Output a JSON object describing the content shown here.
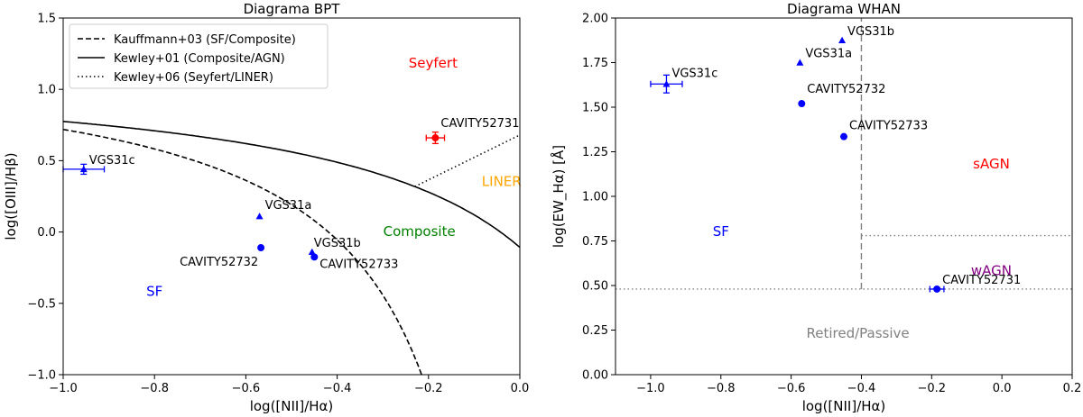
{
  "chart_data": [
    {
      "type": "scatter",
      "title": "Diagrama BPT",
      "xlabel": "log([NII]/Hα)",
      "ylabel": "log([OIII]/Hβ)",
      "xlim": [
        -1.0,
        0.0
      ],
      "ylim": [
        -1.0,
        1.5
      ],
      "xticks": [
        -1.0,
        -0.8,
        -0.6,
        -0.4,
        -0.2,
        0.0
      ],
      "xtick_labels": [
        "−1.0",
        "−0.8",
        "−0.6",
        "−0.4",
        "−0.2",
        "0.0"
      ],
      "yticks": [
        -1.0,
        -0.5,
        0.0,
        0.5,
        1.0,
        1.5
      ],
      "ytick_labels": [
        "−1.0",
        "−0.5",
        "0.0",
        "0.5",
        "1.0",
        "1.5"
      ],
      "legend": {
        "placement": "top-left",
        "entries": [
          {
            "label": "Kauffmann+03 (SF/Composite)",
            "style": "dashed"
          },
          {
            "label": "Kewley+01 (Composite/AGN)",
            "style": "solid"
          },
          {
            "label": "Kewley+06 (Seyfert/LINER)",
            "style": "dotted"
          }
        ]
      },
      "points": [
        {
          "name": "VGS31c",
          "x": -0.955,
          "y": 0.44,
          "marker": "triangle",
          "color": "#0000ff",
          "xerr": 0.045,
          "yerr": 0.035,
          "label_dx": 6,
          "label_dy": -6
        },
        {
          "name": "VGS31a",
          "x": -0.57,
          "y": 0.11,
          "marker": "triangle",
          "color": "#0000ff",
          "xerr": 0,
          "yerr": 0,
          "label_dx": 6,
          "label_dy": -8
        },
        {
          "name": "CAVITY52732",
          "x": -0.567,
          "y": -0.11,
          "marker": "circle",
          "color": "#0000ff",
          "xerr": 0,
          "yerr": 0,
          "label_dx": -90,
          "label_dy": 20
        },
        {
          "name": "VGS31b",
          "x": -0.455,
          "y": -0.14,
          "marker": "triangle",
          "color": "#0000ff",
          "xerr": 0,
          "yerr": 0,
          "label_dx": 2,
          "label_dy": -6
        },
        {
          "name": "CAVITY52733",
          "x": -0.45,
          "y": -0.175,
          "marker": "circle",
          "color": "#0000ff",
          "xerr": 0,
          "yerr": 0,
          "label_dx": 6,
          "label_dy": 12
        },
        {
          "name": "CAVITY52731",
          "x": -0.185,
          "y": 0.66,
          "marker": "circle",
          "color": "#ff0000",
          "xerr": 0.02,
          "yerr": 0.04,
          "label_dx": 6,
          "label_dy": -12
        }
      ],
      "annotations": [
        {
          "text": "Seyfert",
          "x": -0.19,
          "y": 1.18,
          "color": "#ff0000"
        },
        {
          "text": "LINER",
          "x": -0.04,
          "y": 0.35,
          "color": "#ffa500"
        },
        {
          "text": "Composite",
          "x": -0.22,
          "y": 0.0,
          "color": "#008000"
        },
        {
          "text": "SF",
          "x": -0.8,
          "y": -0.42,
          "color": "#0000ff"
        }
      ],
      "curves": {
        "kauffmann03": {
          "formula": "0.61/(x-0.05)+1.3",
          "x_from": -1.0,
          "x_to": -0.2
        },
        "kewley01": {
          "formula": "0.61/(x-0.47)+1.19",
          "x_from": -1.0,
          "x_to": 0.0
        },
        "kewley06": {
          "x_from": -0.23,
          "x_to": 0.0,
          "slope": 1.5,
          "intercept": 0.68
        }
      }
    },
    {
      "type": "scatter",
      "title": "Diagrama WHAN",
      "xlabel": "log([NII]/Hα)",
      "ylabel": "log(EW_Hα) [Å]",
      "xlim": [
        -1.1,
        0.2
      ],
      "ylim": [
        0.0,
        2.0
      ],
      "xticks": [
        -1.0,
        -0.8,
        -0.6,
        -0.4,
        -0.2,
        0.0,
        0.2
      ],
      "xtick_labels": [
        "−1.0",
        "−0.8",
        "−0.6",
        "−0.4",
        "−0.2",
        "0.0",
        "0.2"
      ],
      "yticks": [
        0.0,
        0.25,
        0.5,
        0.75,
        1.0,
        1.25,
        1.5,
        1.75,
        2.0
      ],
      "ytick_labels": [
        "0.00",
        "0.25",
        "0.50",
        "0.75",
        "1.00",
        "1.25",
        "1.50",
        "1.75",
        "2.00"
      ],
      "points": [
        {
          "name": "VGS31c",
          "x": -0.955,
          "y": 1.63,
          "marker": "triangle",
          "color": "#0000ff",
          "xerr": 0.045,
          "yerr": 0.05,
          "label_dx": 6,
          "label_dy": -8
        },
        {
          "name": "VGS31b",
          "x": -0.455,
          "y": 1.875,
          "marker": "triangle",
          "color": "#0000ff",
          "xerr": 0,
          "yerr": 0,
          "label_dx": 6,
          "label_dy": -6
        },
        {
          "name": "VGS31a",
          "x": -0.575,
          "y": 1.75,
          "marker": "triangle",
          "color": "#0000ff",
          "xerr": 0,
          "yerr": 0,
          "label_dx": 6,
          "label_dy": -6
        },
        {
          "name": "CAVITY52732",
          "x": -0.57,
          "y": 1.52,
          "marker": "circle",
          "color": "#0000ff",
          "xerr": 0,
          "yerr": 0,
          "label_dx": 6,
          "label_dy": -12
        },
        {
          "name": "CAVITY52733",
          "x": -0.45,
          "y": 1.335,
          "marker": "circle",
          "color": "#0000ff",
          "xerr": 0,
          "yerr": 0,
          "label_dx": 6,
          "label_dy": -8
        },
        {
          "name": "CAVITY52731",
          "x": -0.185,
          "y": 0.48,
          "marker": "circle",
          "color": "#0000ff",
          "xerr": 0.02,
          "yerr": 0,
          "label_dx": 6,
          "label_dy": -6
        }
      ],
      "annotations": [
        {
          "text": "sAGN",
          "x": -0.03,
          "y": 1.18,
          "color": "#ff0000"
        },
        {
          "text": "wAGN",
          "x": -0.03,
          "y": 0.58,
          "color": "#800080"
        },
        {
          "text": "SF",
          "x": -0.8,
          "y": 0.8,
          "color": "#0000ff"
        },
        {
          "text": "Retired/Passive",
          "x": -0.41,
          "y": 0.23,
          "color": "#808080"
        }
      ],
      "lines": [
        {
          "kind": "vertical",
          "x": -0.4,
          "y_from": 0.48,
          "y_to": 2.0,
          "style": "dashed",
          "color": "#808080"
        },
        {
          "kind": "horizontal",
          "y": 0.48,
          "x_from": -1.1,
          "x_to": 0.2,
          "style": "dotted",
          "color": "#808080"
        },
        {
          "kind": "horizontal",
          "y": 0.78,
          "x_from": -0.4,
          "x_to": 0.2,
          "style": "dotted",
          "color": "#808080"
        }
      ]
    }
  ]
}
